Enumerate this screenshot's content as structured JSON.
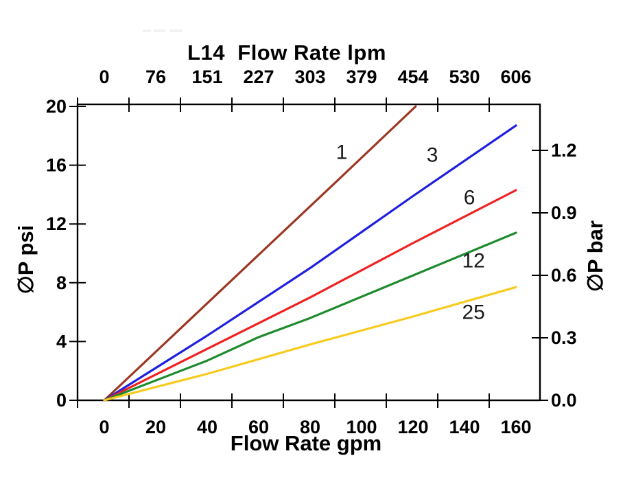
{
  "chart_data": {
    "type": "line",
    "title_top": "L14  Flow Rate lpm",
    "xlabel_bottom": "Flow Rate gpm",
    "ylabel_left": "∅P psi",
    "ylabel_right": "∅P bar",
    "x_bottom": {
      "label": "Flow Rate gpm",
      "ticks": [
        0,
        20,
        40,
        60,
        80,
        100,
        120,
        140,
        160
      ],
      "range": [
        0,
        169
      ]
    },
    "x_top": {
      "label": "L14 Flow Rate lpm",
      "ticks": [
        0,
        76,
        151,
        227,
        303,
        379,
        454,
        530,
        606
      ],
      "range": [
        0,
        640
      ]
    },
    "y_left": {
      "label": "∅P psi",
      "ticks": [
        0,
        4,
        8,
        12,
        16,
        20
      ],
      "range": [
        0,
        20
      ]
    },
    "y_right": {
      "label": "∅P bar",
      "ticks": [
        "0.0",
        "0.3",
        "0.6",
        "0.9",
        "1.2"
      ],
      "range": [
        0,
        1.4
      ]
    },
    "grid": false,
    "legend": "inline-curve-labels",
    "axis_color": "#000000",
    "curve_label_color": "#1a1a1a",
    "series": [
      {
        "name": "1",
        "color": "#9C3722",
        "points": [
          [
            0,
            0
          ],
          [
            30,
            4.95
          ],
          [
            60,
            9.9
          ],
          [
            90,
            14.85
          ],
          [
            121,
            20
          ]
        ],
        "label_at": [
          92.3,
          16.9
        ]
      },
      {
        "name": "3",
        "color": "#1F1FDF",
        "points": [
          [
            0,
            0
          ],
          [
            40,
            4.4
          ],
          [
            80,
            9.0
          ],
          [
            120,
            13.9
          ],
          [
            160,
            18.7
          ]
        ],
        "label_at": [
          127.5,
          16.7
        ]
      },
      {
        "name": "6",
        "color": "#EE2222",
        "points": [
          [
            0,
            0
          ],
          [
            40,
            3.5
          ],
          [
            80,
            7.0
          ],
          [
            120,
            10.7
          ],
          [
            160,
            14.3
          ]
        ],
        "label_at": [
          141.9,
          13.8
        ]
      },
      {
        "name": "12",
        "color": "#1E8B2E",
        "points": [
          [
            0,
            0
          ],
          [
            40,
            2.7
          ],
          [
            60,
            4.3
          ],
          [
            80,
            5.6
          ],
          [
            120,
            8.5
          ],
          [
            160,
            11.4
          ]
        ],
        "label_at": [
          143.5,
          9.5
        ]
      },
      {
        "name": "25",
        "color": "#F7CB1E",
        "points": [
          [
            0,
            0
          ],
          [
            40,
            1.8
          ],
          [
            80,
            3.8
          ],
          [
            120,
            5.7
          ],
          [
            160,
            7.7
          ]
        ],
        "label_at": [
          143.5,
          6.0
        ]
      }
    ]
  }
}
